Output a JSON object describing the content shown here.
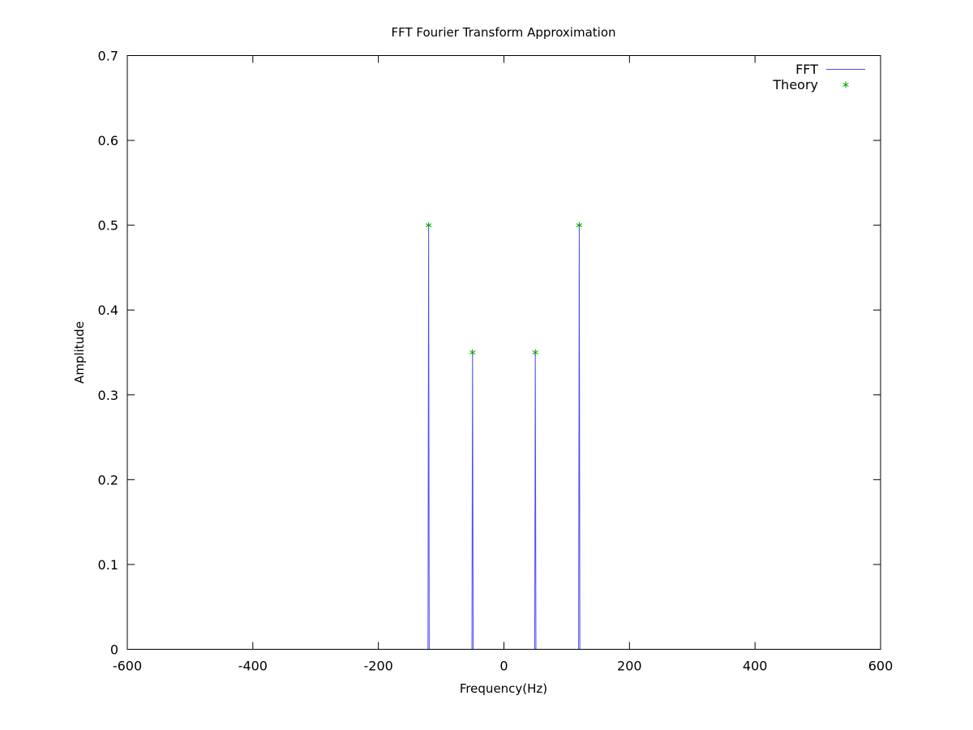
{
  "chart_data": {
    "type": "line",
    "title": "FFT Fourier Transform Approximation",
    "xlabel": "Frequency(Hz)",
    "ylabel": "Amplitude",
    "xlim": [
      -600,
      600
    ],
    "ylim": [
      0,
      0.7
    ],
    "xticks": [
      -600,
      -400,
      -200,
      0,
      200,
      400,
      600
    ],
    "yticks": [
      0,
      0.1,
      0.2,
      0.3,
      0.4,
      0.5,
      0.6,
      0.7
    ],
    "xtick_labels": [
      "-600",
      "-400",
      "-200",
      "0",
      "200",
      "400",
      "600"
    ],
    "ytick_labels": [
      "0",
      "0.1",
      "0.2",
      "0.3",
      "0.4",
      "0.5",
      "0.6",
      "0.7"
    ],
    "grid": false,
    "legend_position": "top-right",
    "series": [
      {
        "name": "FFT",
        "style": "line",
        "color": "#4b4bff",
        "x": [
          -500,
          -121,
          -120,
          -119,
          -51,
          -50,
          -49,
          49,
          50,
          51,
          119,
          120,
          121,
          500
        ],
        "y": [
          0,
          0,
          0.5,
          0,
          0,
          0.35,
          0,
          0,
          0.35,
          0,
          0,
          0.5,
          0,
          0
        ]
      },
      {
        "name": "Theory",
        "style": "points",
        "marker": "asterisk",
        "color": "#009e00",
        "x": [
          -120,
          -50,
          50,
          120
        ],
        "y": [
          0.5,
          0.35,
          0.35,
          0.5
        ]
      }
    ]
  }
}
